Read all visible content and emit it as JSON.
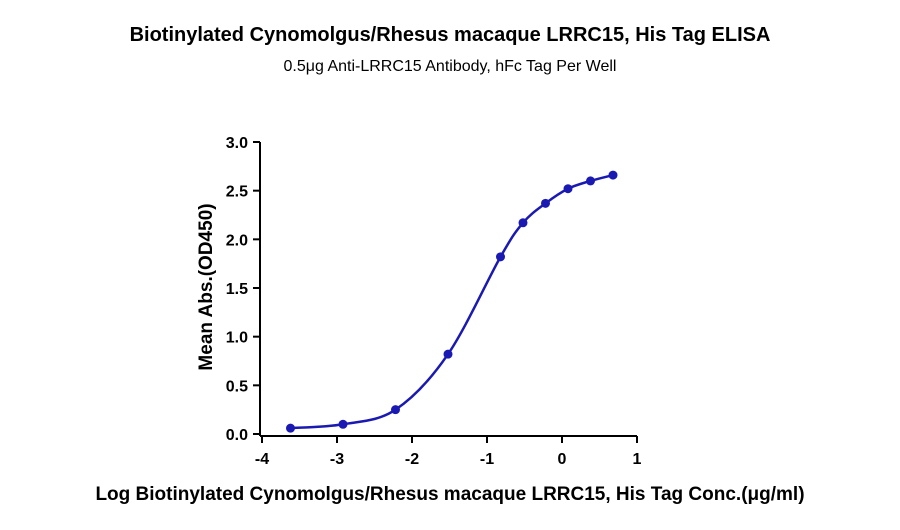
{
  "chart_data": {
    "type": "scatter",
    "title": "Biotinylated Cynomolgus/Rhesus macaque LRRC15, His Tag ELISA",
    "subtitle": "0.5μg Anti-LRRC15 Antibody, hFc Tag Per Well",
    "xlabel": "Log Biotinylated Cynomolgus/Rhesus macaque LRRC15, His Tag Conc.(μg/ml)",
    "ylabel": "Mean Abs.(OD450)",
    "xlim": [
      -4,
      1
    ],
    "ylim": [
      0,
      3.0
    ],
    "x_ticks": [
      "-4",
      "-3",
      "-2",
      "-1",
      "0",
      "1"
    ],
    "y_ticks": [
      "0.0",
      "0.5",
      "1.0",
      "1.5",
      "2.0",
      "2.5",
      "3.0"
    ],
    "series": [
      {
        "x": [
          -3.62,
          -2.92,
          -2.22,
          -1.52,
          -0.82,
          -0.52,
          -0.22,
          0.08,
          0.38,
          0.68
        ],
        "y": [
          0.06,
          0.1,
          0.25,
          0.82,
          1.82,
          2.17,
          2.37,
          2.52,
          2.6,
          2.66
        ],
        "color": "#1a1ab3",
        "fit": "4PL sigmoid curve"
      }
    ],
    "grid": false,
    "legend": "none"
  }
}
